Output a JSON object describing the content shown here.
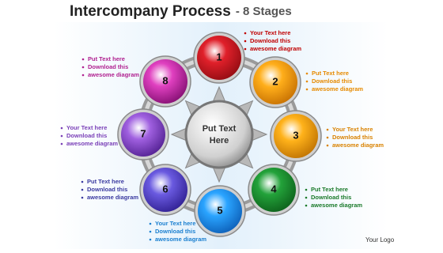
{
  "title": "Intercompany Process",
  "subtitle": "- 8 Stages",
  "center": {
    "line1": "Put Text",
    "line2": "Here"
  },
  "stages": [
    {
      "number": "1",
      "lines": [
        "Your Text here",
        "Download this",
        "awesome diagram"
      ]
    },
    {
      "number": "2",
      "lines": [
        "Put Text here",
        "Download this",
        "awesome diagram"
      ]
    },
    {
      "number": "3",
      "lines": [
        "Your Text here",
        "Download this",
        "awesome diagram"
      ]
    },
    {
      "number": "4",
      "lines": [
        "Put Text here",
        "Download this",
        "awesome diagram"
      ]
    },
    {
      "number": "5",
      "lines": [
        "Your Text here",
        "Download this",
        "awesome diagram"
      ]
    },
    {
      "number": "6",
      "lines": [
        "Put Text here",
        "Download this",
        "awesome diagram"
      ]
    },
    {
      "number": "7",
      "lines": [
        "Your Text here",
        "Download this",
        "awesome diagram"
      ]
    },
    {
      "number": "8",
      "lines": [
        "Put Text here",
        "Download this",
        "awesome diagram"
      ]
    }
  ],
  "logo": "Your Logo"
}
